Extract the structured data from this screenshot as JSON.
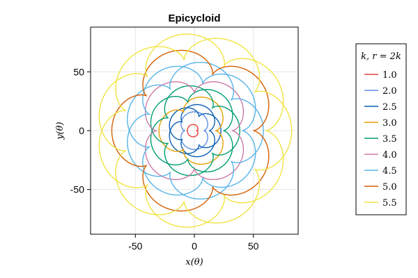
{
  "chart_data": {
    "type": "line",
    "title": "Epicycloid",
    "xlabel": "x(θ)",
    "ylabel": "y(θ)",
    "xlim": [
      -88,
      88
    ],
    "ylim": [
      -88,
      88
    ],
    "xticks": [
      -50,
      0,
      50
    ],
    "yticks": [
      -50,
      0,
      50
    ],
    "grid": true,
    "legend": {
      "title": "k, r = 2k",
      "placement": "right"
    },
    "series": [
      {
        "name": "1.0",
        "k": 1.0,
        "r": 2.0,
        "color": "#e8413c"
      },
      {
        "name": "2.0",
        "k": 2.0,
        "r": 4.0,
        "color": "#5b8de6"
      },
      {
        "name": "2.5",
        "k": 2.5,
        "r": 5.0,
        "color": "#0a5fb3"
      },
      {
        "name": "3.0",
        "k": 3.0,
        "r": 6.0,
        "color": "#e69f00"
      },
      {
        "name": "3.5",
        "k": 3.5,
        "r": 7.0,
        "color": "#009e73"
      },
      {
        "name": "4.0",
        "k": 4.0,
        "r": 8.0,
        "color": "#cc79a7"
      },
      {
        "name": "4.5",
        "k": 4.5,
        "r": 9.0,
        "color": "#56b4e9"
      },
      {
        "name": "5.0",
        "k": 5.0,
        "r": 10.0,
        "color": "#d55e00"
      },
      {
        "name": "5.5",
        "k": 5.5,
        "r": 11.0,
        "color": "#f0e442"
      }
    ]
  }
}
